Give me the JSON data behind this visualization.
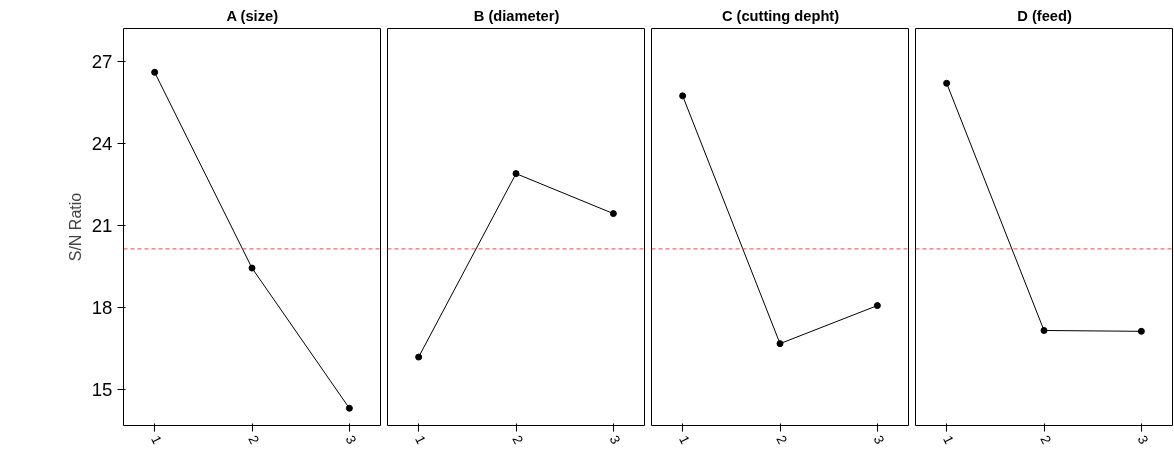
{
  "chart_data": [
    {
      "type": "line",
      "title": "A (size)",
      "ylabel": "S/N Ratio",
      "categories": [
        "1",
        "2",
        "3"
      ],
      "series": [
        {
          "color": "#000000",
          "values": [
            26.6,
            19.45,
            14.33
          ]
        }
      ],
      "ylim": [
        13.7,
        28.2
      ],
      "yticks": [
        15,
        18,
        21,
        24,
        27
      ],
      "ref_lines": [
        {
          "axis": "y",
          "value": 20.15,
          "color": "#ff4040",
          "line_style": "dashed"
        }
      ],
      "marker": "circle",
      "line_style": "solid",
      "grid": false
    },
    {
      "type": "line",
      "title": "B (diameter)",
      "categories": [
        "1",
        "2",
        "3"
      ],
      "series": [
        {
          "color": "#000000",
          "values": [
            16.2,
            22.9,
            21.44
          ]
        }
      ],
      "ylim": [
        13.7,
        28.2
      ],
      "yticks": [
        15,
        18,
        21,
        24,
        27
      ],
      "tick_labels": "x",
      "ref_lines": [
        {
          "axis": "y",
          "value": 20.15,
          "color": "#ff4040",
          "line_style": "dashed"
        }
      ],
      "marker": "circle",
      "line_style": "solid",
      "grid": false
    },
    {
      "type": "line",
      "title": "C (cutting depht)",
      "categories": [
        "1",
        "2",
        "3"
      ],
      "series": [
        {
          "color": "#000000",
          "values": [
            25.74,
            16.69,
            18.08
          ]
        }
      ],
      "ylim": [
        13.7,
        28.2
      ],
      "yticks": [
        15,
        18,
        21,
        24,
        27
      ],
      "tick_labels": "x",
      "ref_lines": [
        {
          "axis": "y",
          "value": 20.15,
          "color": "#ff4040",
          "line_style": "dashed"
        }
      ],
      "marker": "circle",
      "line_style": "solid",
      "grid": false
    },
    {
      "type": "line",
      "title": "D (feed)",
      "categories": [
        "1",
        "2",
        "3"
      ],
      "series": [
        {
          "color": "#000000",
          "values": [
            26.2,
            17.17,
            17.14
          ]
        }
      ],
      "ylim": [
        13.7,
        28.2
      ],
      "yticks": [
        15,
        18,
        21,
        24,
        27
      ],
      "tick_labels": "x",
      "ref_lines": [
        {
          "axis": "y",
          "value": 20.15,
          "color": "#ff4040",
          "line_style": "dashed"
        }
      ],
      "marker": "circle",
      "line_style": "solid",
      "grid": false
    }
  ]
}
